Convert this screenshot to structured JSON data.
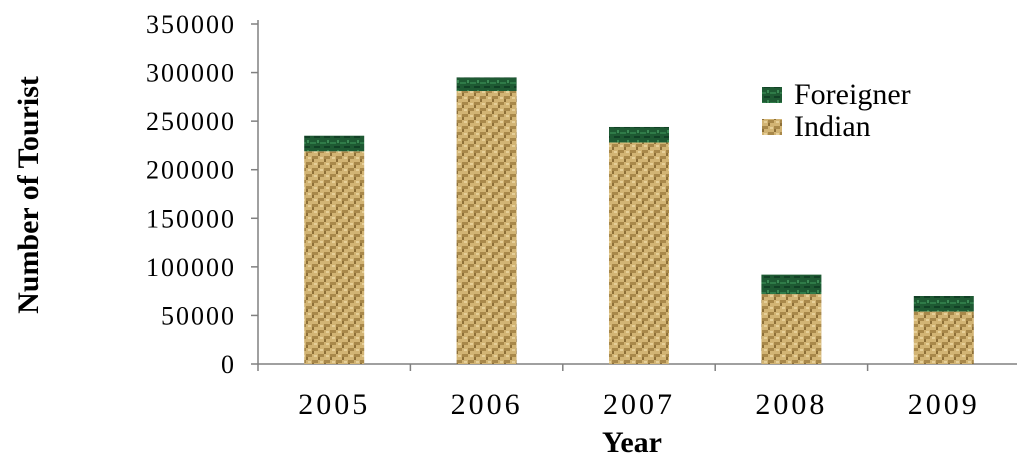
{
  "chart_data": {
    "type": "bar",
    "stacked": true,
    "categories": [
      "2005",
      "2006",
      "2007",
      "2008",
      "2009"
    ],
    "series": [
      {
        "name": "Indian",
        "values": [
          219000,
          281000,
          228000,
          72000,
          54000
        ],
        "color": "#c8a866",
        "pattern": "woven-texture"
      },
      {
        "name": "Foreigner",
        "values": [
          16000,
          14000,
          16000,
          20000,
          16000
        ],
        "color": "#1f5a34",
        "pattern": "dark-green-marble"
      }
    ],
    "title": "",
    "xlabel": "Year",
    "ylabel": "Number of Tourist",
    "ylim": [
      0,
      350000
    ],
    "yticks": [
      0,
      50000,
      100000,
      150000,
      200000,
      250000,
      300000,
      350000
    ],
    "ytick_labels": [
      "0",
      "50000",
      "100000",
      "150000",
      "200000",
      "250000",
      "300000",
      "350000"
    ],
    "legend": {
      "position": "top-right",
      "entries": [
        "Foreigner",
        "Indian"
      ]
    },
    "grid": false
  }
}
